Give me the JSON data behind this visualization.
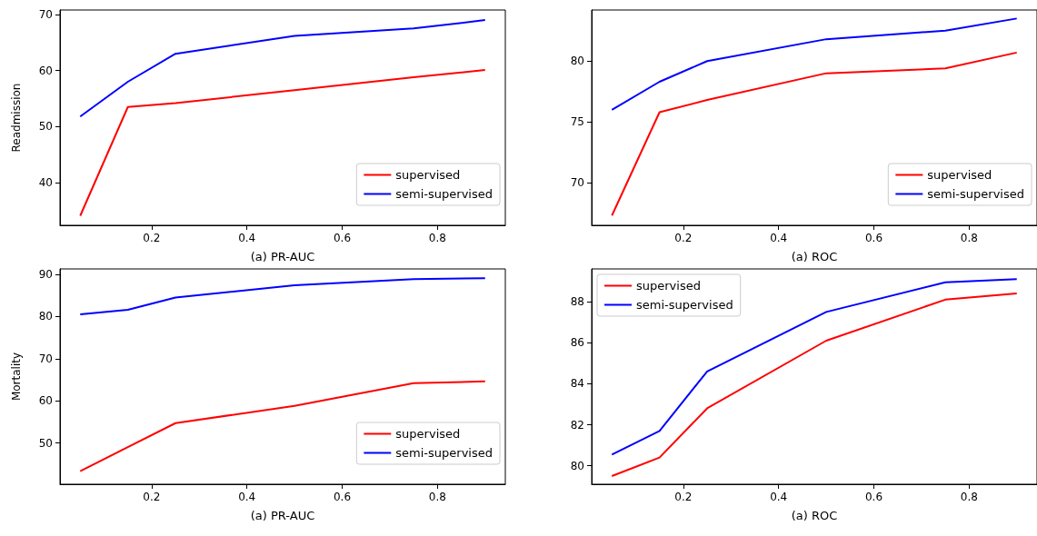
{
  "chart_data": [
    {
      "type": "line",
      "xlabel": "(a) PR-AUC",
      "ylabel": "Readmission",
      "x": [
        0.05,
        0.15,
        0.25,
        0.5,
        0.75,
        0.9
      ],
      "xlim": [
        0.0075,
        0.9425
      ],
      "xticks": [
        0.2,
        0.4,
        0.6,
        0.8
      ],
      "ylim": [
        32.4,
        70.8
      ],
      "yticks": [
        40,
        50,
        60,
        70
      ],
      "legend": "bottom right",
      "series": [
        {
          "name": "supervised",
          "color": "#ff0000",
          "values": [
            34.1,
            53.5,
            54.2,
            56.5,
            58.8,
            60.1
          ]
        },
        {
          "name": "semi-supervised",
          "color": "#0000ff",
          "values": [
            51.8,
            58.0,
            63.0,
            66.2,
            67.5,
            69.0
          ]
        }
      ]
    },
    {
      "type": "line",
      "xlabel": "(a) ROC",
      "x": [
        0.05,
        0.15,
        0.25,
        0.5,
        0.75,
        0.9
      ],
      "xlim": [
        0.0075,
        0.9425
      ],
      "xticks": [
        0.2,
        0.4,
        0.6,
        0.8
      ],
      "ylim": [
        66.5,
        84.2
      ],
      "yticks": [
        70,
        75,
        80
      ],
      "legend": "bottom right",
      "series": [
        {
          "name": "supervised",
          "color": "#ff0000",
          "values": [
            67.3,
            75.8,
            76.8,
            79.0,
            79.4,
            80.7
          ]
        },
        {
          "name": "semi-supervised",
          "color": "#0000ff",
          "values": [
            76.0,
            78.3,
            80.0,
            81.8,
            82.5,
            83.5
          ]
        }
      ]
    },
    {
      "type": "line",
      "xlabel": "(a) PR-AUC",
      "ylabel": "Mortality",
      "x": [
        0.05,
        0.15,
        0.25,
        0.5,
        0.75,
        0.9
      ],
      "xlim": [
        0.0075,
        0.9425
      ],
      "xticks": [
        0.2,
        0.4,
        0.6,
        0.8
      ],
      "ylim": [
        40.2,
        91.3
      ],
      "yticks": [
        50,
        60,
        70,
        80,
        90
      ],
      "legend": "bottom right",
      "series": [
        {
          "name": "supervised",
          "color": "#ff0000",
          "values": [
            43.3,
            49.0,
            54.7,
            58.8,
            64.2,
            64.6
          ]
        },
        {
          "name": "semi-supervised",
          "color": "#0000ff",
          "values": [
            80.5,
            81.6,
            84.5,
            87.4,
            88.9,
            89.1
          ]
        }
      ]
    },
    {
      "type": "line",
      "xlabel": "(a) ROC",
      "x": [
        0.05,
        0.15,
        0.25,
        0.5,
        0.75,
        0.9
      ],
      "xlim": [
        0.0075,
        0.9425
      ],
      "xticks": [
        0.2,
        0.4,
        0.6,
        0.8
      ],
      "ylim": [
        79.1,
        89.6
      ],
      "yticks": [
        80,
        82,
        84,
        86,
        88
      ],
      "legend": "top left",
      "series": [
        {
          "name": "supervised",
          "color": "#ff0000",
          "values": [
            79.5,
            80.4,
            82.8,
            86.1,
            88.1,
            88.4
          ]
        },
        {
          "name": "semi-supervised",
          "color": "#0000ff",
          "values": [
            80.55,
            81.7,
            84.6,
            87.5,
            88.95,
            89.1
          ]
        }
      ]
    }
  ]
}
